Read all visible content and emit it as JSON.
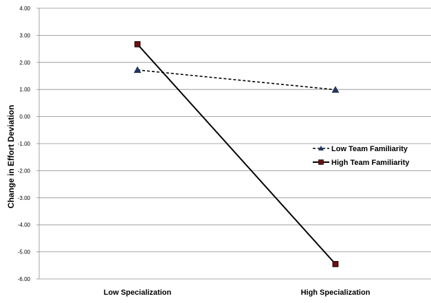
{
  "chart_data": {
    "type": "line",
    "categories": [
      "Low Specialization",
      "High Specialization"
    ],
    "ylabel": "Change in Effort Deviation",
    "ylim": [
      -6,
      4
    ],
    "yticks": [
      "4.00",
      "3.00",
      "2.00",
      "1.00",
      "0.00",
      "-1.00",
      "-2.00",
      "-3.00",
      "-4.00",
      "-5.00",
      "-6.00"
    ],
    "grid": true,
    "legend_position": "right",
    "series": [
      {
        "name": "Low Team Familiarity",
        "values": [
          1.72,
          0.99
        ],
        "line_style": "dashed",
        "marker": "triangle",
        "color": "#000000",
        "marker_color": "#1f3864"
      },
      {
        "name": "High Team Familiarity",
        "values": [
          2.67,
          -5.45
        ],
        "line_style": "solid",
        "marker": "square",
        "color": "#000000",
        "marker_color": "#6b1111"
      }
    ]
  }
}
